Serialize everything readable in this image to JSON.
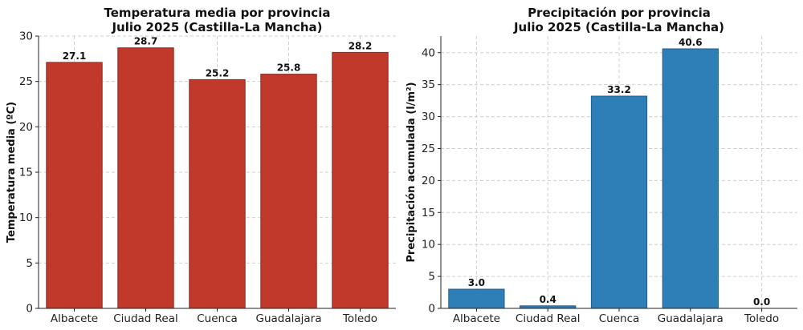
{
  "chart_data": [
    {
      "type": "bar",
      "title": [
        "Temperatura media por provincia",
        "Julio 2025 (Castilla-La Mancha)"
      ],
      "xlabel": "",
      "ylabel": "Temperatura media (ºC)",
      "categories": [
        "Albacete",
        "Ciudad Real",
        "Cuenca",
        "Guadalajara",
        "Toledo"
      ],
      "values": [
        27.1,
        28.7,
        25.2,
        25.8,
        28.2
      ],
      "data_labels": [
        "27.1",
        "28.7",
        "25.2",
        "25.8",
        "28.2"
      ],
      "ylim": [
        0,
        30
      ],
      "yticks": [
        0,
        5,
        10,
        15,
        20,
        25,
        30
      ],
      "grid": true,
      "bar_color": "#c0392b",
      "bar_edge_color": "#8e2a20"
    },
    {
      "type": "bar",
      "title": [
        "Precipitación por provincia",
        "Julio 2025 (Castilla-La Mancha)"
      ],
      "xlabel": "",
      "ylabel": "Precipitación acumulada (l/m²)",
      "categories": [
        "Albacete",
        "Ciudad Real",
        "Cuenca",
        "Guadalajara",
        "Toledo"
      ],
      "values": [
        3.0,
        0.4,
        33.2,
        40.6,
        0.0
      ],
      "data_labels": [
        "3.0",
        "0.4",
        "33.2",
        "40.6",
        "0.0"
      ],
      "ylim": [
        0,
        42.6
      ],
      "yticks": [
        0,
        5,
        10,
        15,
        20,
        25,
        30,
        35,
        40
      ],
      "grid": true,
      "bar_color": "#2e7fb8",
      "bar_edge_color": "#1f5f8f"
    }
  ]
}
